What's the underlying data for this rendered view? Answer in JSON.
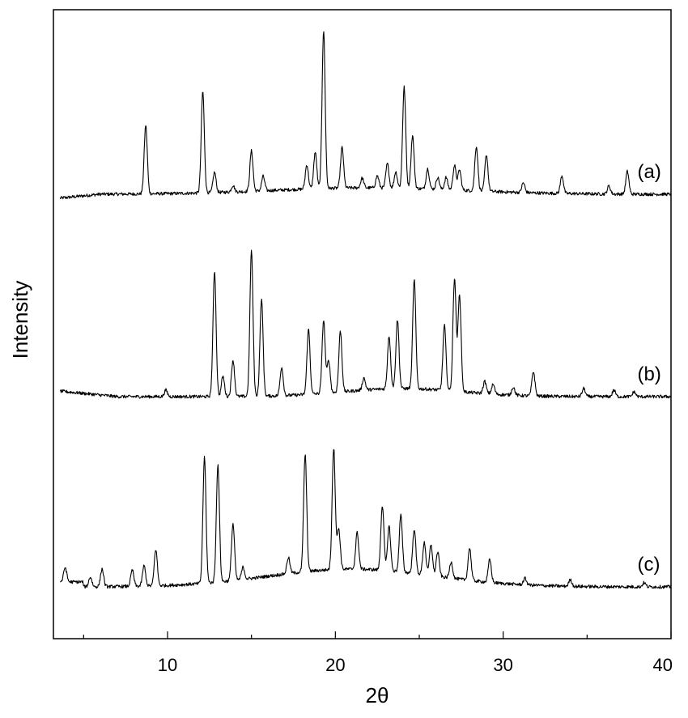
{
  "chart_data": {
    "type": "line",
    "title": "",
    "xlabel": "2θ",
    "ylabel": "Intensity",
    "xlim": [
      3.2,
      40
    ],
    "xticks": [
      10,
      20,
      30,
      40
    ],
    "yticks_shown": false,
    "grid": false,
    "legend": "none",
    "series": [
      {
        "name": "(a)",
        "baseline": 240,
        "peaks": [
          [
            8.7,
            85
          ],
          [
            12.1,
            125
          ],
          [
            12.8,
            25
          ],
          [
            13.9,
            8
          ],
          [
            15.0,
            50
          ],
          [
            15.7,
            18
          ],
          [
            18.3,
            30
          ],
          [
            18.8,
            45
          ],
          [
            19.3,
            195
          ],
          [
            20.4,
            50
          ],
          [
            21.6,
            12
          ],
          [
            22.5,
            15
          ],
          [
            23.1,
            30
          ],
          [
            23.6,
            20
          ],
          [
            24.1,
            125
          ],
          [
            24.6,
            65
          ],
          [
            25.5,
            25
          ],
          [
            26.1,
            15
          ],
          [
            26.6,
            15
          ],
          [
            27.1,
            30
          ],
          [
            27.4,
            25
          ],
          [
            28.4,
            55
          ],
          [
            29.0,
            45
          ],
          [
            31.2,
            12
          ],
          [
            33.5,
            22
          ],
          [
            36.3,
            10
          ],
          [
            37.4,
            28
          ]
        ],
        "label_x": 38.0
      },
      {
        "name": "(b)",
        "baseline": 490,
        "peaks": [
          [
            9.9,
            8
          ],
          [
            12.8,
            155
          ],
          [
            13.3,
            25
          ],
          [
            13.9,
            45
          ],
          [
            15.0,
            180
          ],
          [
            15.6,
            120
          ],
          [
            16.8,
            35
          ],
          [
            18.4,
            80
          ],
          [
            19.3,
            90
          ],
          [
            19.6,
            40
          ],
          [
            20.3,
            75
          ],
          [
            21.7,
            15
          ],
          [
            23.2,
            65
          ],
          [
            23.7,
            85
          ],
          [
            24.7,
            135
          ],
          [
            26.5,
            80
          ],
          [
            27.1,
            140
          ],
          [
            27.4,
            120
          ],
          [
            28.9,
            15
          ],
          [
            29.4,
            12
          ],
          [
            30.6,
            10
          ],
          [
            31.8,
            30
          ],
          [
            34.8,
            10
          ],
          [
            36.6,
            8
          ],
          [
            37.8,
            6
          ]
        ],
        "label_x": 38.0
      },
      {
        "name": "(c)",
        "baseline": 725,
        "peaks": [
          [
            3.9,
            18
          ],
          [
            5.4,
            12
          ],
          [
            6.1,
            22
          ],
          [
            7.9,
            20
          ],
          [
            8.6,
            25
          ],
          [
            9.3,
            45
          ],
          [
            12.2,
            155
          ],
          [
            13.0,
            145
          ],
          [
            13.9,
            70
          ],
          [
            14.5,
            15
          ],
          [
            17.2,
            20
          ],
          [
            18.2,
            145
          ],
          [
            19.9,
            150
          ],
          [
            20.2,
            50
          ],
          [
            21.3,
            45
          ],
          [
            22.8,
            80
          ],
          [
            23.2,
            55
          ],
          [
            23.9,
            70
          ],
          [
            24.7,
            55
          ],
          [
            25.3,
            40
          ],
          [
            25.7,
            38
          ],
          [
            26.1,
            30
          ],
          [
            26.9,
            20
          ],
          [
            28.0,
            40
          ],
          [
            29.2,
            28
          ],
          [
            31.3,
            8
          ],
          [
            34.0,
            8
          ],
          [
            38.4,
            5
          ]
        ],
        "label_x": 38.0
      }
    ]
  }
}
